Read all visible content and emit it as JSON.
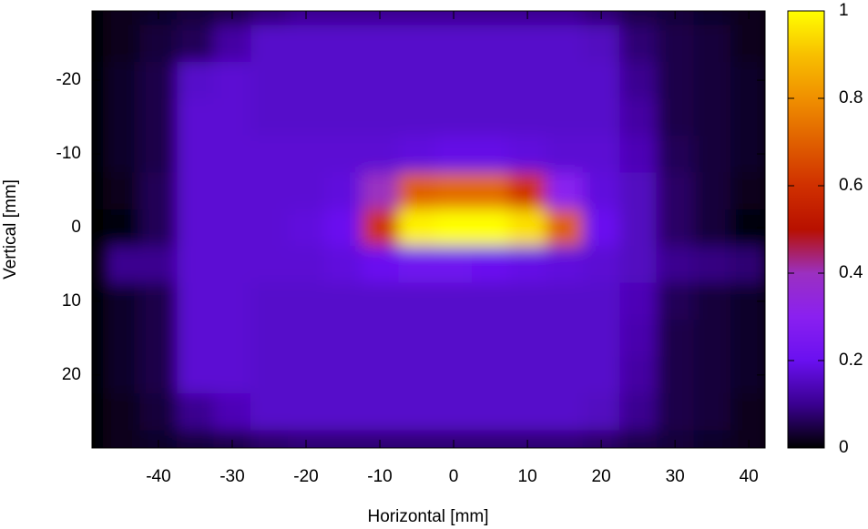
{
  "chart_data": {
    "type": "heatmap",
    "xlabel": "Horizontal [mm]",
    "ylabel": "Vertical [mm]",
    "x": [
      -45,
      -40,
      -35,
      -30,
      -25,
      -20,
      -15,
      -10,
      -5,
      0,
      5,
      10,
      15,
      20,
      25,
      30,
      35,
      40
    ],
    "y": [
      -30,
      -25,
      -20,
      -15,
      -10,
      -5,
      0,
      5,
      10,
      15,
      20,
      25,
      30
    ],
    "z": [
      [
        0.02,
        0.03,
        0.04,
        0.05,
        0.08,
        0.1,
        0.1,
        0.1,
        0.1,
        0.1,
        0.1,
        0.1,
        0.1,
        0.08,
        0.05,
        0.04,
        0.03,
        0.02
      ],
      [
        0.02,
        0.04,
        0.06,
        0.12,
        0.16,
        0.16,
        0.16,
        0.16,
        0.16,
        0.16,
        0.16,
        0.16,
        0.16,
        0.15,
        0.08,
        0.05,
        0.04,
        0.02
      ],
      [
        0.03,
        0.05,
        0.16,
        0.17,
        0.16,
        0.16,
        0.16,
        0.16,
        0.16,
        0.16,
        0.16,
        0.16,
        0.16,
        0.16,
        0.1,
        0.05,
        0.04,
        0.03
      ],
      [
        0.03,
        0.05,
        0.17,
        0.17,
        0.16,
        0.16,
        0.16,
        0.16,
        0.16,
        0.16,
        0.16,
        0.16,
        0.16,
        0.16,
        0.12,
        0.05,
        0.04,
        0.03
      ],
      [
        0.03,
        0.05,
        0.17,
        0.17,
        0.17,
        0.17,
        0.17,
        0.17,
        0.18,
        0.19,
        0.19,
        0.18,
        0.17,
        0.17,
        0.14,
        0.06,
        0.04,
        0.03
      ],
      [
        0.02,
        0.06,
        0.17,
        0.17,
        0.17,
        0.17,
        0.18,
        0.4,
        0.7,
        0.72,
        0.72,
        0.6,
        0.3,
        0.18,
        0.15,
        0.07,
        0.04,
        0.02
      ],
      [
        0.01,
        0.06,
        0.17,
        0.17,
        0.17,
        0.18,
        0.2,
        0.6,
        0.98,
        1,
        1,
        0.95,
        0.7,
        0.2,
        0.15,
        0.07,
        0.04,
        0.01
      ],
      [
        0.1,
        0.1,
        0.17,
        0.17,
        0.17,
        0.17,
        0.18,
        0.2,
        0.22,
        0.22,
        0.2,
        0.19,
        0.18,
        0.17,
        0.15,
        0.1,
        0.09,
        0.08
      ],
      [
        0.03,
        0.05,
        0.17,
        0.17,
        0.16,
        0.16,
        0.16,
        0.16,
        0.16,
        0.16,
        0.16,
        0.16,
        0.16,
        0.16,
        0.14,
        0.06,
        0.04,
        0.03
      ],
      [
        0.03,
        0.05,
        0.17,
        0.17,
        0.16,
        0.16,
        0.16,
        0.16,
        0.16,
        0.16,
        0.16,
        0.16,
        0.16,
        0.16,
        0.13,
        0.05,
        0.04,
        0.03
      ],
      [
        0.03,
        0.05,
        0.17,
        0.17,
        0.16,
        0.16,
        0.16,
        0.16,
        0.16,
        0.16,
        0.16,
        0.16,
        0.16,
        0.16,
        0.12,
        0.05,
        0.04,
        0.03
      ],
      [
        0.02,
        0.04,
        0.1,
        0.14,
        0.16,
        0.16,
        0.16,
        0.16,
        0.16,
        0.16,
        0.16,
        0.16,
        0.16,
        0.15,
        0.1,
        0.05,
        0.04,
        0.02
      ],
      [
        0.02,
        0.03,
        0.04,
        0.05,
        0.07,
        0.08,
        0.08,
        0.08,
        0.08,
        0.08,
        0.08,
        0.08,
        0.08,
        0.07,
        0.05,
        0.04,
        0.03,
        0.02
      ]
    ],
    "xlim": [
      -49,
      42.2
    ],
    "ylim": [
      29.9,
      -29.4
    ],
    "xticks": [
      -40,
      -30,
      -20,
      -10,
      0,
      10,
      20,
      30,
      40
    ],
    "yticks": [
      -20,
      -10,
      0,
      10,
      20
    ],
    "zlim": [
      0,
      1
    ],
    "zticks": [
      0,
      0.2,
      0.4,
      0.6,
      0.8,
      1
    ],
    "colormap": [
      "#000000",
      "#3a0090",
      "#6a10f0",
      "#8a20f0",
      "#9b30c0",
      "#b81000",
      "#d03000",
      "#e06000",
      "#f09000",
      "#f8c000",
      "#ffff00"
    ]
  }
}
